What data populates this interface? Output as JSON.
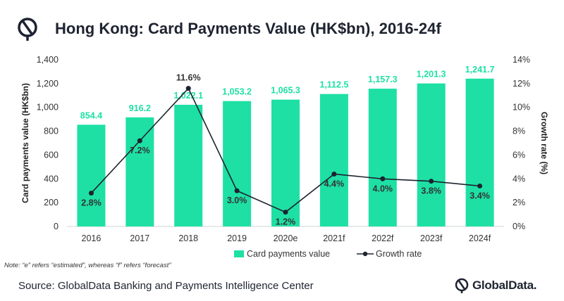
{
  "header": {
    "title": "Hong Kong: Card Payments Value (HK$bn), 2016-24f"
  },
  "chart_data": {
    "type": "bar",
    "categories": [
      "2016",
      "2017",
      "2018",
      "2019",
      "2020e",
      "2021f",
      "2022f",
      "2023f",
      "2024f"
    ],
    "series": [
      {
        "name": "Card payments value",
        "type": "bar",
        "axis": "left",
        "values": [
          854.4,
          916.2,
          1022.1,
          1053.2,
          1065.3,
          1112.5,
          1157.3,
          1201.3,
          1241.7
        ],
        "labels": [
          "854.4",
          "916.2",
          "1,022.1",
          "1,053.2",
          "1,065.3",
          "1,112.5",
          "1,157.3",
          "1,201.3",
          "1,241.7"
        ],
        "color": "#1ee0a4"
      },
      {
        "name": "Growth rate",
        "type": "line",
        "axis": "right",
        "values": [
          2.8,
          7.2,
          11.6,
          3.0,
          1.2,
          4.4,
          4.0,
          3.8,
          3.4
        ],
        "labels": [
          "2.8%",
          "7.2%",
          "11.6%",
          "3.0%",
          "1.2%",
          "4.4%",
          "4.0%",
          "3.8%",
          "3.4%"
        ],
        "color": "#1d2330"
      }
    ],
    "ylabel": "Card payments value (HK$bn)",
    "y2label": "Growth rate (%)",
    "ylim": [
      0,
      1400
    ],
    "y2lim": [
      0,
      14
    ],
    "yticks": [
      "0",
      "200",
      "400",
      "600",
      "800",
      "1,000",
      "1,200",
      "1,400"
    ],
    "y2ticks": [
      "0%",
      "2%",
      "4%",
      "6%",
      "8%",
      "10%",
      "12%",
      "14%"
    ],
    "legend_position": "bottom",
    "grid": false
  },
  "footer": {
    "note": "Note: “e” refers “estimated”, whereas “f” refers “forecast”",
    "source": "Source: GlobalData Banking and Payments Intelligence Center",
    "brand": "GlobalData."
  },
  "colors": {
    "bar": "#1ee0a4",
    "line": "#1d2330",
    "title": "#1d2330"
  }
}
